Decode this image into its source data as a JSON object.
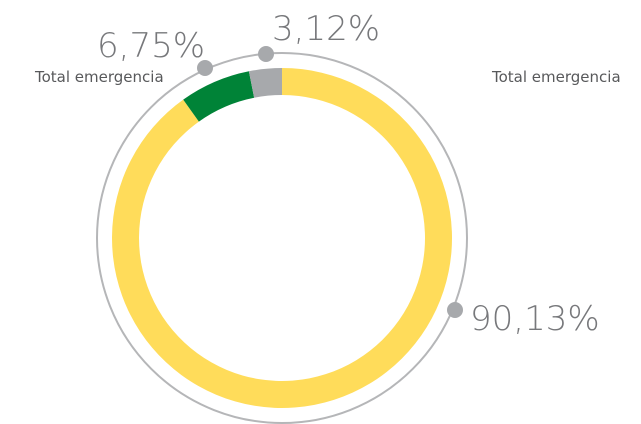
{
  "chart_data": {
    "type": "donut",
    "values": [
      90.13,
      6.75,
      3.12
    ],
    "value_labels": [
      "90,13%",
      "6,75%",
      "3,12%"
    ],
    "colors": [
      "#ffdc5a",
      "#008337",
      "#a7a9ac"
    ],
    "annotations": [
      "Total emergencia",
      "Total emergencia"
    ]
  }
}
